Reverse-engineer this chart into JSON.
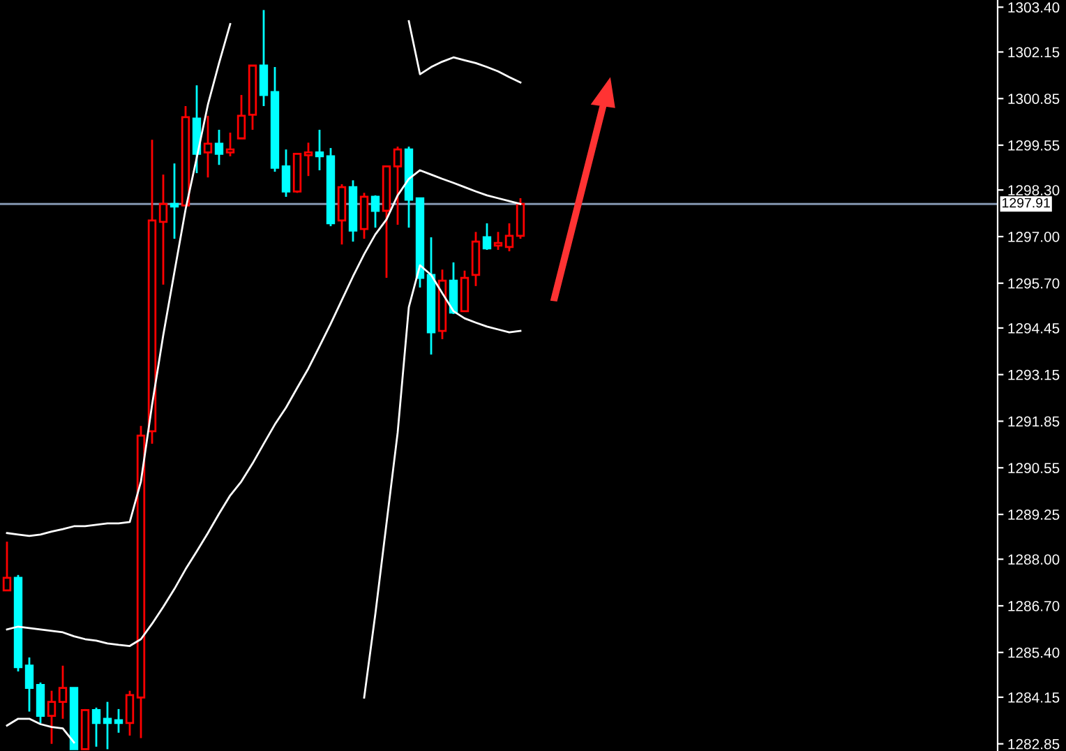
{
  "chart_data": {
    "type": "candlestick",
    "categories": [
      null,
      null,
      null,
      null,
      null,
      null,
      null,
      null,
      null,
      null,
      null,
      null,
      null,
      null,
      null,
      null,
      null,
      null,
      null,
      null,
      null,
      null,
      null,
      null,
      null,
      null,
      null,
      null,
      null,
      null,
      null,
      null,
      null,
      null,
      null,
      null,
      null,
      null,
      null,
      null,
      null,
      null,
      null,
      null,
      null,
      null,
      null
    ],
    "ohlc": [
      [
        1287.13,
        1288.49,
        1287.13,
        1287.48
      ],
      [
        1287.48,
        1287.56,
        1284.87,
        1284.99
      ],
      [
        1285.03,
        1285.26,
        1283.75,
        1284.41
      ],
      [
        1284.49,
        1284.56,
        1283.43,
        1283.63
      ],
      [
        1283.63,
        1284.33,
        1282.85,
        1284.02
      ],
      [
        1284.02,
        1285.03,
        1283.55,
        1284.41
      ],
      [
        1284.41,
        1284.41,
        1282.7,
        1282.7
      ],
      [
        1282.7,
        1283.82,
        1282.7,
        1283.79
      ],
      [
        1283.79,
        1283.86,
        1282.77,
        1283.43
      ],
      [
        1283.55,
        1284.02,
        1282.7,
        1283.43
      ],
      [
        1283.51,
        1283.82,
        1283.16,
        1283.43
      ],
      [
        1283.43,
        1284.33,
        1283.08,
        1284.21
      ],
      [
        1284.14,
        1291.72,
        1283.01,
        1291.45
      ],
      [
        1291.57,
        1299.7,
        1291.22,
        1297.45
      ],
      [
        1297.41,
        1298.73,
        1295.66,
        1297.91
      ],
      [
        1297.91,
        1299.04,
        1296.94,
        1297.84
      ],
      [
        1297.87,
        1300.64,
        1297.87,
        1300.33
      ],
      [
        1300.29,
        1301.22,
        1298.77,
        1299.31
      ],
      [
        1299.35,
        1300.37,
        1298.65,
        1299.59
      ],
      [
        1299.59,
        1299.98,
        1299.0,
        1299.31
      ],
      [
        1299.35,
        1299.9,
        1299.24,
        1299.43
      ],
      [
        1299.74,
        1300.95,
        1299.74,
        1300.37
      ],
      [
        1300.4,
        1301.77,
        1299.98,
        1301.77
      ],
      [
        1301.77,
        1303.32,
        1300.64,
        1300.95
      ],
      [
        1301.03,
        1301.73,
        1298.81,
        1298.92
      ],
      [
        1298.96,
        1299.43,
        1298.11,
        1298.26
      ],
      [
        1298.26,
        1299.31,
        1298.22,
        1299.31
      ],
      [
        1299.27,
        1299.62,
        1298.69,
        1299.35
      ],
      [
        1299.35,
        1299.98,
        1298.85,
        1299.24
      ],
      [
        1299.24,
        1299.47,
        1297.29,
        1297.37
      ],
      [
        1297.45,
        1298.46,
        1296.78,
        1298.38
      ],
      [
        1298.38,
        1298.57,
        1296.86,
        1297.17
      ],
      [
        1297.21,
        1298.22,
        1296.94,
        1298.11
      ],
      [
        1298.11,
        1298.15,
        1297.25,
        1297.72
      ],
      [
        1297.72,
        1298.96,
        1295.85,
        1298.96
      ],
      [
        1298.96,
        1299.51,
        1297.33,
        1299.43
      ],
      [
        1299.43,
        1299.51,
        1297.25,
        1298.03
      ],
      [
        1298.07,
        1298.07,
        1295.58,
        1295.85
      ],
      [
        1295.93,
        1296.98,
        1293.71,
        1294.33
      ],
      [
        1294.37,
        1296.08,
        1294.14,
        1295.77
      ],
      [
        1295.77,
        1296.28,
        1294.84,
        1294.88
      ],
      [
        1294.92,
        1296.05,
        1294.92,
        1295.85
      ],
      [
        1295.93,
        1297.13,
        1295.62,
        1296.86
      ],
      [
        1296.98,
        1297.37,
        1296.63,
        1296.67
      ],
      [
        1296.75,
        1297.13,
        1296.63,
        1296.82
      ],
      [
        1296.71,
        1297.37,
        1296.59,
        1297.02
      ],
      [
        1297.02,
        1298.07,
        1296.94,
        1297.91
      ]
    ],
    "colors": [
      "#ff0000",
      "#00ffff",
      "#00ffff",
      "#00ffff",
      "#ff0000",
      "#ff0000",
      "#00ffff",
      "#ff0000",
      "#00ffff",
      "#00ffff",
      "#00ffff",
      "#ff0000",
      "#ff0000",
      "#ff0000",
      "#ff0000",
      "#00ffff",
      "#ff0000",
      "#00ffff",
      "#ff0000",
      "#00ffff",
      "#ff0000",
      "#ff0000",
      "#ff0000",
      "#00ffff",
      "#00ffff",
      "#00ffff",
      "#ff0000",
      "#ff0000",
      "#00ffff",
      "#00ffff",
      "#ff0000",
      "#00ffff",
      "#ff0000",
      "#00ffff",
      "#ff0000",
      "#ff0000",
      "#00ffff",
      "#00ffff",
      "#00ffff",
      "#ff0000",
      "#00ffff",
      "#ff0000",
      "#ff0000",
      "#00ffff",
      "#ff0000",
      "#ff0000",
      "#ff0000"
    ],
    "series": [
      {
        "type": "line",
        "color": "#ffffff",
        "values": [
          1288.73,
          1288.69,
          1288.65,
          1288.69,
          1288.77,
          1288.84,
          1288.92,
          1288.92,
          1288.96,
          1289.0,
          1289.0,
          1289.04,
          1290.17,
          1292.31,
          1294.25,
          1296.01,
          1297.76,
          1299.2,
          1300.68,
          1301.84,
          1302.93,
          null,
          null,
          null,
          null,
          null,
          null,
          null,
          null,
          null,
          null,
          null,
          null,
          null,
          null,
          null,
          1303.01,
          1301.53,
          1301.73,
          1301.88,
          1302.0,
          1301.92,
          1301.84,
          1301.73,
          1301.61,
          1301.45,
          1301.3
        ]
      },
      {
        "type": "line",
        "color": "#ffffff",
        "values": [
          1286.04,
          1286.12,
          1286.08,
          1286.04,
          1286.0,
          1285.96,
          1285.85,
          1285.77,
          1285.73,
          1285.65,
          1285.61,
          1285.58,
          1285.77,
          1286.2,
          1286.67,
          1287.17,
          1287.72,
          1288.22,
          1288.73,
          1289.27,
          1289.78,
          1290.17,
          1290.67,
          1291.22,
          1291.76,
          1292.23,
          1292.78,
          1293.32,
          1293.94,
          1294.57,
          1295.23,
          1295.89,
          1296.51,
          1297.06,
          1297.48,
          1298.15,
          1298.61,
          1298.85,
          1298.73,
          1298.61,
          1298.5,
          1298.38,
          1298.26,
          1298.15,
          1298.07,
          1297.99,
          1297.91
        ]
      },
      {
        "type": "line",
        "color": "#ffffff",
        "values": [
          1283.36,
          1283.55,
          1283.55,
          1283.4,
          1283.32,
          1283.28,
          1282.89,
          null,
          null,
          null,
          null,
          null,
          null,
          null,
          null,
          null,
          null,
          null,
          null,
          null,
          null,
          null,
          null,
          null,
          null,
          null,
          null,
          null,
          null,
          null,
          null,
          null,
          1284.14,
          1286.47,
          1289.0,
          1291.53,
          1295.03,
          1296.2,
          1295.93,
          1295.42,
          1294.92,
          1294.72,
          1294.6,
          1294.49,
          1294.41,
          1294.33,
          1294.37
        ]
      }
    ],
    "ylim": [
      1282.65,
      1303.6
    ],
    "yticks": [
      {
        "value": 1303.4,
        "label": "1303.40"
      },
      {
        "value": 1302.15,
        "label": "1302.15"
      },
      {
        "value": 1300.85,
        "label": "1300.85"
      },
      {
        "value": 1299.55,
        "label": "1299.55"
      },
      {
        "value": 1298.3,
        "label": "1298.30"
      },
      {
        "value": 1297.0,
        "label": "1297.00"
      },
      {
        "value": 1295.7,
        "label": "1295.70"
      },
      {
        "value": 1294.45,
        "label": "1294.45"
      },
      {
        "value": 1293.15,
        "label": "1293.15"
      },
      {
        "value": 1291.85,
        "label": "1291.85"
      },
      {
        "value": 1290.55,
        "label": "1290.55"
      },
      {
        "value": 1289.25,
        "label": "1289.25"
      },
      {
        "value": 1288.0,
        "label": "1288.00"
      },
      {
        "value": 1286.7,
        "label": "1286.70"
      },
      {
        "value": 1285.4,
        "label": "1285.40"
      },
      {
        "value": 1284.15,
        "label": "1284.15"
      },
      {
        "value": 1282.85,
        "label": "1282.85"
      }
    ],
    "ref_lines": [
      {
        "axis": "y",
        "value": 1297.91,
        "label": "1297.91",
        "color": "#8496b0"
      }
    ],
    "grid": false,
    "tick_labels": "y"
  }
}
